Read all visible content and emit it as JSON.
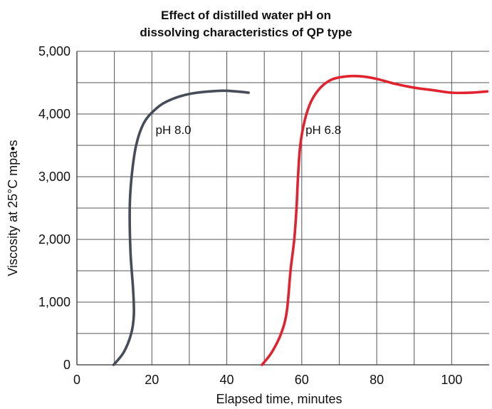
{
  "chart_data": {
    "type": "line",
    "title": [
      "Effect of distilled water pH on",
      "dissolving  characteristics of QP type"
    ],
    "xlabel": "Elapsed time, minutes",
    "ylabel": "Viscosity at 25°C mpa•s",
    "xlim": [
      0,
      110
    ],
    "ylim": [
      0,
      5000
    ],
    "xticks": [
      0,
      20,
      40,
      60,
      80,
      100
    ],
    "xtick_labels": [
      "0",
      "20",
      "40",
      "60",
      "80",
      "100"
    ],
    "yticks": [
      0,
      1000,
      2000,
      3000,
      4000,
      5000
    ],
    "ytick_labels": [
      "0",
      "1,000",
      "2,000",
      "3,000",
      "4,000",
      "5,000"
    ],
    "grid": true,
    "series": [
      {
        "name": "pH 8.0",
        "color": "#474c59",
        "points": [
          [
            9.8,
            0
          ],
          [
            12.5,
            200
          ],
          [
            14.5,
            500
          ],
          [
            15.2,
            800
          ],
          [
            15,
            1200
          ],
          [
            14.3,
            1800
          ],
          [
            14.1,
            2500
          ],
          [
            14.6,
            3000
          ],
          [
            15.8,
            3500
          ],
          [
            17.8,
            3850
          ],
          [
            20.5,
            4050
          ],
          [
            24,
            4200
          ],
          [
            30,
            4320
          ],
          [
            38,
            4370
          ],
          [
            42.5,
            4360
          ],
          [
            45.8,
            4340
          ]
        ]
      },
      {
        "name": "pH 6.8",
        "color": "#e0232f",
        "points": [
          [
            49.4,
            0
          ],
          [
            52,
            200
          ],
          [
            54.5,
            500
          ],
          [
            56,
            850
          ],
          [
            57,
            1500
          ],
          [
            58,
            2000
          ],
          [
            58.6,
            2500
          ],
          [
            59,
            3000
          ],
          [
            59.6,
            3500
          ],
          [
            60.8,
            3900
          ],
          [
            62.5,
            4200
          ],
          [
            65,
            4420
          ],
          [
            68,
            4550
          ],
          [
            72,
            4600
          ],
          [
            76,
            4600
          ],
          [
            80,
            4560
          ],
          [
            85,
            4480
          ],
          [
            90,
            4420
          ],
          [
            95,
            4380
          ],
          [
            100,
            4340
          ],
          [
            105,
            4340
          ],
          [
            109.5,
            4360
          ]
        ]
      }
    ],
    "annotations": [
      {
        "text": "pH 8.0",
        "x": 21,
        "y": 3680
      },
      {
        "text": "pH 6.8",
        "x": 61,
        "y": 3680
      }
    ]
  }
}
